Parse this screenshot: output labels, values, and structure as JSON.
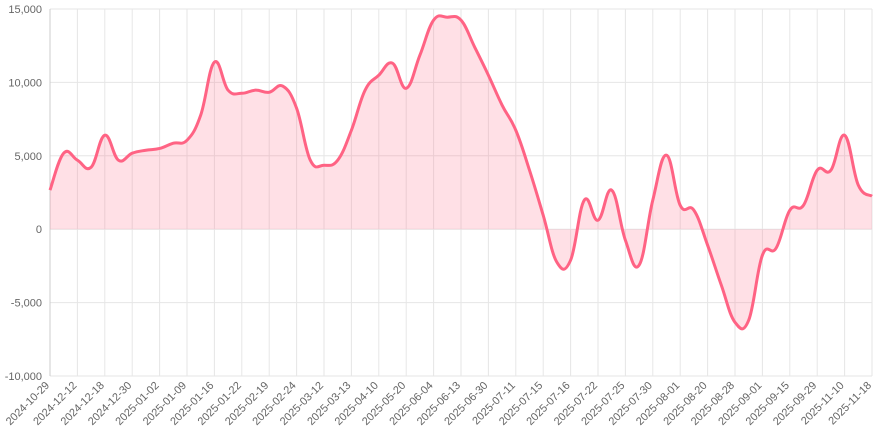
{
  "chart_data": {
    "type": "area",
    "categories": [
      "2024-10-29",
      null,
      "2024-12-12",
      null,
      "2024-12-18",
      null,
      "2024-12-30",
      null,
      "2025-01-02",
      null,
      "2025-01-09",
      null,
      "2025-01-16",
      null,
      "2025-01-22",
      null,
      "2025-02-19",
      null,
      "2025-02-24",
      null,
      "2025-03-12",
      null,
      "2025-03-13",
      null,
      "2025-04-10",
      null,
      "2025-05-20",
      null,
      "2025-06-04",
      null,
      "2025-06-13",
      null,
      "2025-06-30",
      null,
      "2025-07-11",
      null,
      "2025-07-15",
      null,
      "2025-07-16",
      null,
      "2025-07-22",
      null,
      "2025-07-25",
      null,
      "2025-07-30",
      null,
      "2025-08-01",
      null,
      "2025-08-20",
      null,
      "2025-08-28",
      null,
      "2025-09-01",
      null,
      "2025-09-15",
      null,
      "2025-09-29",
      null,
      "2025-11-10",
      null,
      "2025-11-18"
    ],
    "values": [
      2660,
      5180,
      4700,
      4220,
      6400,
      4700,
      5180,
      5380,
      5500,
      5860,
      6060,
      7770,
      11380,
      9470,
      9260,
      9470,
      9330,
      9740,
      8240,
      4700,
      4360,
      4700,
      6740,
      9470,
      10490,
      11310,
      9600,
      11850,
      14240,
      14440,
      14240,
      12400,
      10490,
      8450,
      6740,
      4020,
      950,
      -2250,
      -2110,
      1980,
      610,
      2660,
      -750,
      -2450,
      1980,
      5040,
      1630,
      1290,
      -1090,
      -3810,
      -6340,
      -6200,
      -1770,
      -1290,
      1290,
      1630,
      4020,
      4020,
      6400,
      3000,
      2250
    ],
    "color": "#ff6384",
    "fill": "rgba(255,99,132,0.2)",
    "ylim": [
      -10000,
      15000
    ],
    "yticks": [
      {
        "value": -10000,
        "label": "-10,000"
      },
      {
        "value": -5000,
        "label": "-5,000"
      },
      0,
      {
        "value": 5000,
        "label": "5,000"
      },
      {
        "value": 10000,
        "label": "10,000"
      },
      {
        "value": 15000,
        "label": "15,000"
      }
    ],
    "grid": true
  }
}
